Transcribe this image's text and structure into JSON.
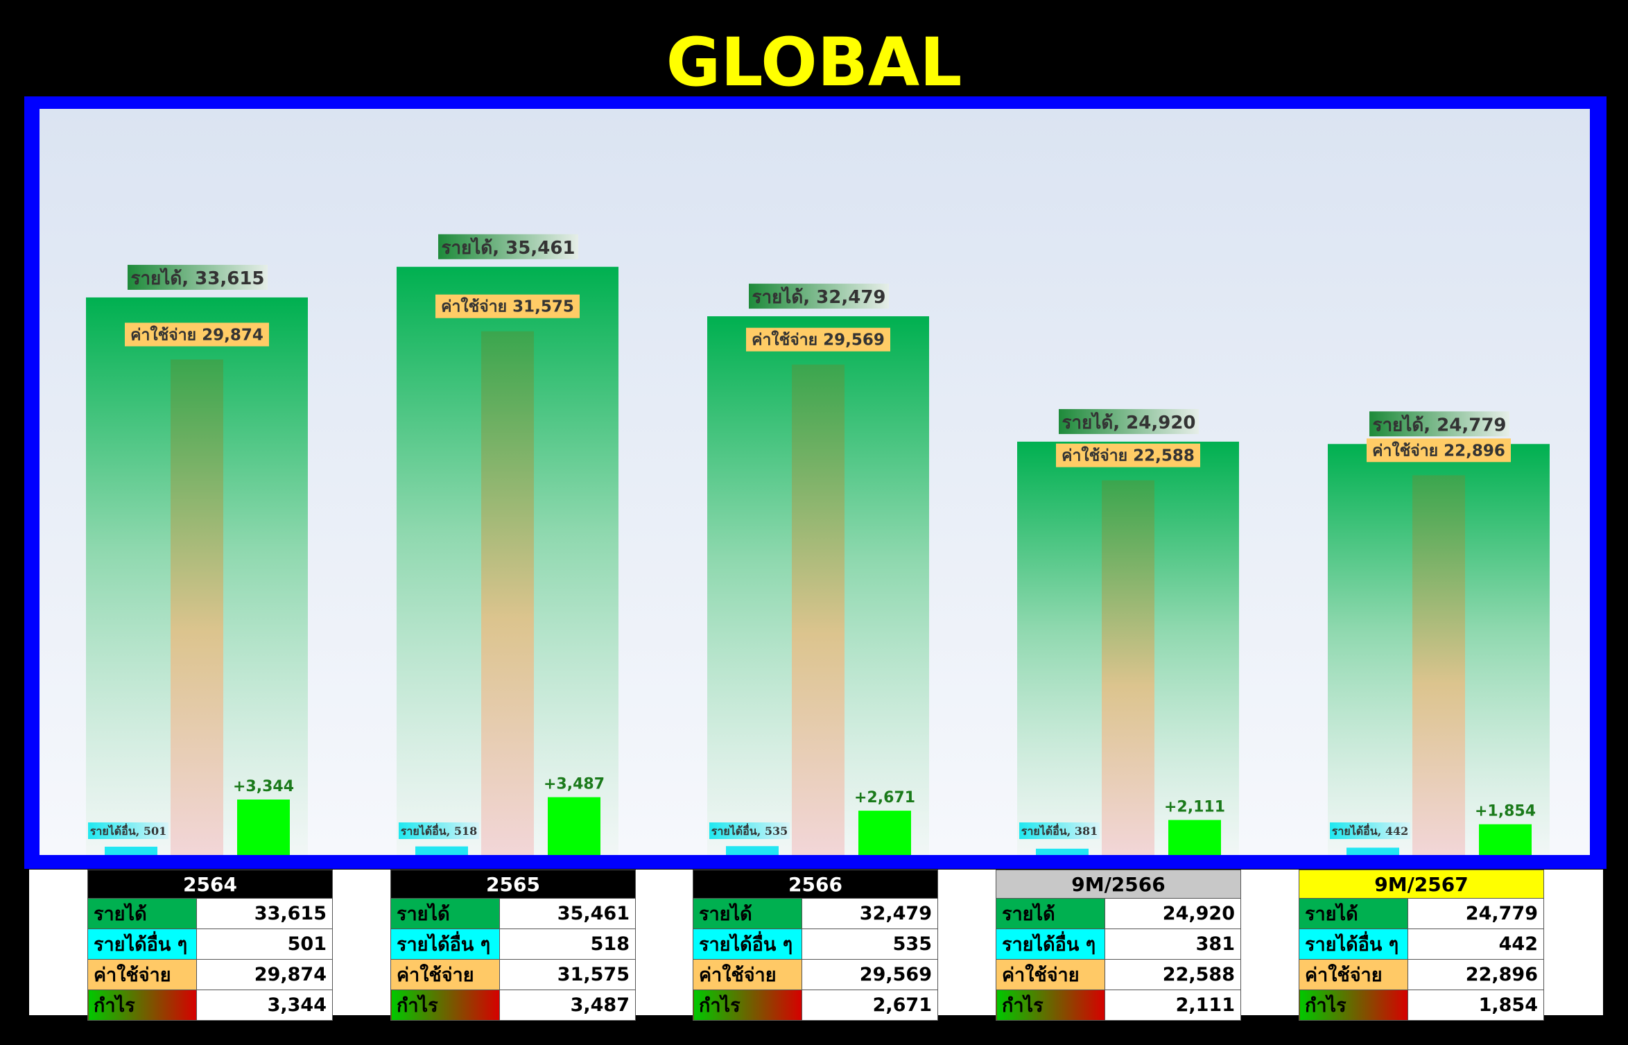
{
  "title": "GLOBAL",
  "colors": {
    "frame": "#0000ff",
    "revenue": "#00b050",
    "other_income": "#00ffff",
    "expense": "#ffc966",
    "profit": "#00ff00",
    "title": "#ffff00"
  },
  "chart_data": {
    "type": "bar",
    "categories": [
      "2564",
      "2565",
      "2566",
      "9M/2566",
      "9M/2567"
    ],
    "series": [
      {
        "name": "รายได้",
        "values": [
          33615,
          35461,
          32479,
          24920,
          24779
        ]
      },
      {
        "name": "รายได้อื่น",
        "values": [
          501,
          518,
          535,
          381,
          442
        ]
      },
      {
        "name": "ค่าใช้จ่าย",
        "values": [
          29874,
          31575,
          29569,
          22588,
          22896
        ]
      },
      {
        "name": "กำไร",
        "values": [
          3344,
          3487,
          2671,
          2111,
          1854
        ]
      }
    ],
    "bar_labels": {
      "revenue": [
        "รายได้, 33,615",
        "รายได้, 35,461",
        "รายได้, 32,479",
        "รายได้, 24,920",
        "รายได้, 24,779"
      ],
      "other": [
        "รายได้อื่น, 501",
        "รายได้อื่น, 518",
        "รายได้อื่น, 535",
        "รายได้อื่น, 381",
        "รายได้อื่น, 442"
      ],
      "expense": [
        "ค่าใช้จ่าย 29,874",
        "ค่าใช้จ่าย 31,575",
        "ค่าใช้จ่าย 29,569",
        "ค่าใช้จ่าย 22,588",
        "ค่าใช้จ่าย 22,896"
      ],
      "profit": [
        "+3,344",
        "+3,487",
        "+2,671",
        "+2,111",
        "+1,854"
      ]
    },
    "ylim": [
      0,
      40000
    ],
    "grid": false,
    "legend": "none"
  },
  "tables": [
    {
      "period": "2564",
      "revenue": "33,615",
      "other": "501",
      "expense": "29,874",
      "profit": "3,344"
    },
    {
      "period": "2565",
      "revenue": "35,461",
      "other": "518",
      "expense": "31,575",
      "profit": "3,487"
    },
    {
      "period": "2566",
      "revenue": "32,479",
      "other": "535",
      "expense": "29,569",
      "profit": "2,671"
    },
    {
      "period": "9M/2566",
      "revenue": "24,920",
      "other": "381",
      "expense": "22,588",
      "profit": "2,111"
    },
    {
      "period": "9M/2567",
      "revenue": "24,779",
      "other": "442",
      "expense": "22,896",
      "profit": "1,854"
    }
  ],
  "row_labels": {
    "revenue": "รายได้",
    "other": "รายได้อื่น ๆ",
    "expense": "ค่าใช้จ่าย",
    "profit": "กำไร"
  }
}
